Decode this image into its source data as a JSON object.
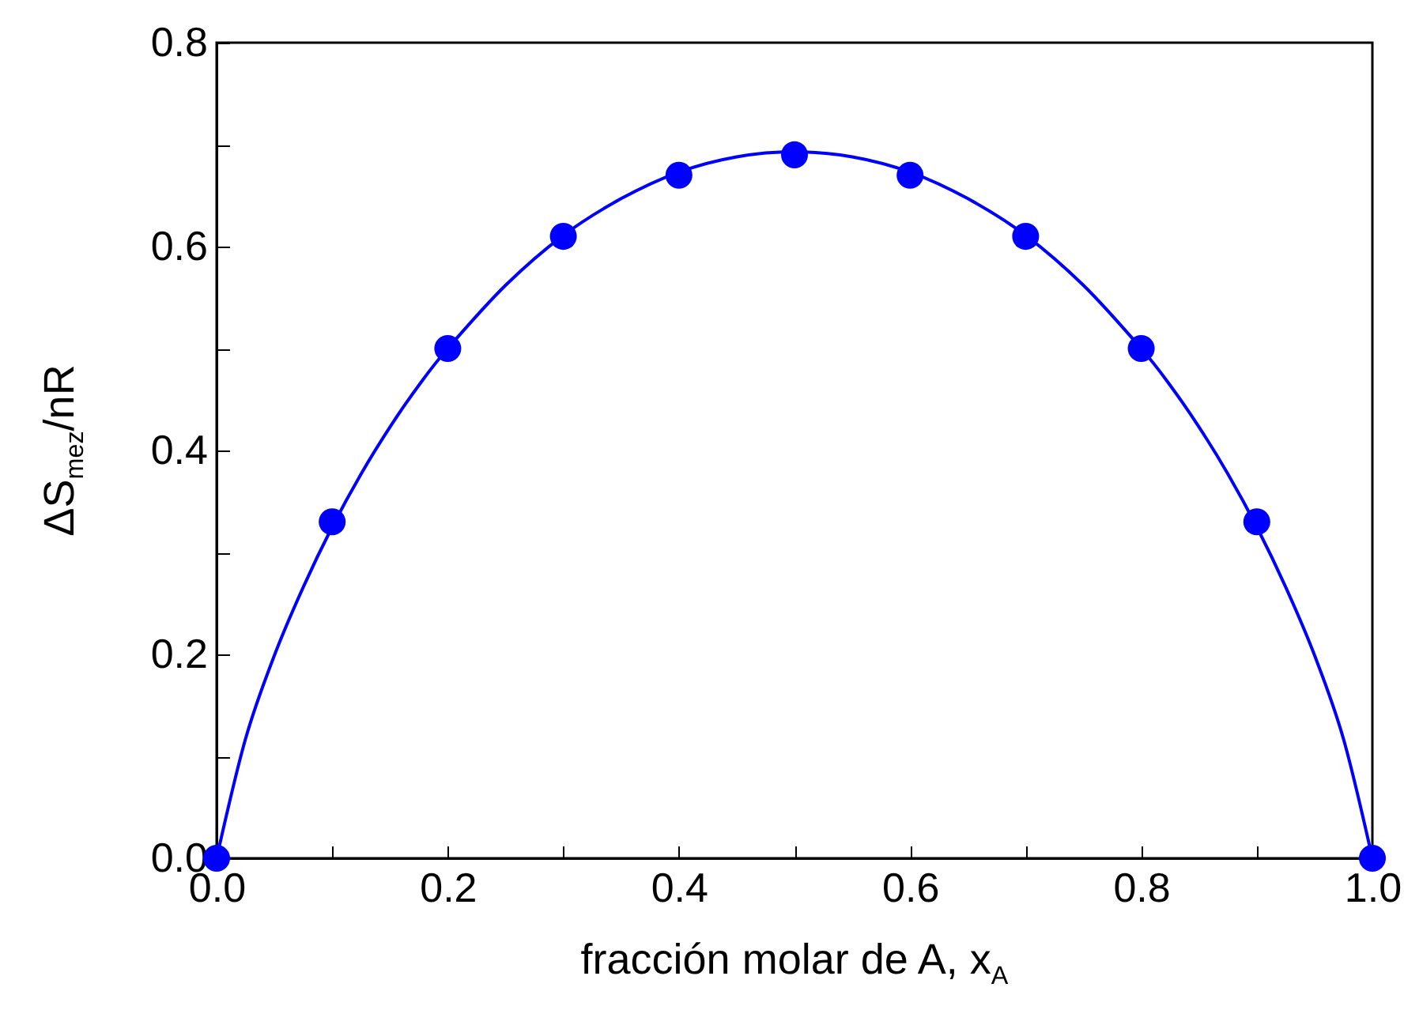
{
  "chart_data": {
    "type": "scatter",
    "xlabel": "fracción molar de A, x$_{A}$",
    "ylabel": "ΔS$_{mez}$/nR",
    "xlim": [
      0,
      1
    ],
    "ylim": [
      0,
      0.8
    ],
    "xticks": [
      {
        "value": 0,
        "label": "0.0"
      },
      {
        "value": 0.1,
        "label": null
      },
      {
        "value": 0.2,
        "label": "0.2"
      },
      {
        "value": 0.3,
        "label": null
      },
      {
        "value": 0.4,
        "label": "0.4"
      },
      {
        "value": 0.5,
        "label": null
      },
      {
        "value": 0.6,
        "label": "0.6"
      },
      {
        "value": 0.7,
        "label": null
      },
      {
        "value": 0.8,
        "label": "0.8"
      },
      {
        "value": 0.9,
        "label": null
      },
      {
        "value": 1,
        "label": "1.0"
      }
    ],
    "yticks": [
      {
        "value": 0,
        "label": "0.0"
      },
      {
        "value": 0.1,
        "label": null
      },
      {
        "value": 0.2,
        "label": "0.2"
      },
      {
        "value": 0.3,
        "label": null
      },
      {
        "value": 0.4,
        "label": "0.4"
      },
      {
        "value": 0.5,
        "label": null
      },
      {
        "value": 0.6,
        "label": "0.6"
      },
      {
        "value": 0.7,
        "label": null
      },
      {
        "value": 0.8,
        "label": "0.8"
      }
    ],
    "grid": false,
    "series": [
      {
        "type": "line",
        "color": "#0000ff",
        "marker": "none",
        "line_style": "solid",
        "x": [
          0,
          0.025,
          0.05,
          0.075,
          0.1,
          0.125,
          0.15,
          0.175,
          0.2,
          0.25,
          0.3,
          0.35,
          0.4,
          0.45,
          0.5,
          0.55,
          0.6,
          0.65,
          0.7,
          0.75,
          0.8,
          0.825,
          0.85,
          0.875,
          0.9,
          0.925,
          0.95,
          0.975,
          1
        ],
        "values": [
          0,
          0.117,
          0.199,
          0.266,
          0.325,
          0.377,
          0.423,
          0.464,
          0.5,
          0.562,
          0.611,
          0.647,
          0.673,
          0.688,
          0.693,
          0.688,
          0.673,
          0.647,
          0.611,
          0.562,
          0.5,
          0.464,
          0.423,
          0.377,
          0.325,
          0.266,
          0.199,
          0.117,
          0
        ]
      },
      {
        "color": "#0000ff",
        "marker": "circle",
        "x": [
          0,
          0.1,
          0.2,
          0.3,
          0.4,
          0.5,
          0.6,
          0.7,
          0.8,
          0.9,
          1
        ],
        "values": [
          0,
          0.33,
          0.5,
          0.61,
          0.67,
          0.69,
          0.67,
          0.61,
          0.5,
          0.33,
          0
        ]
      }
    ]
  }
}
